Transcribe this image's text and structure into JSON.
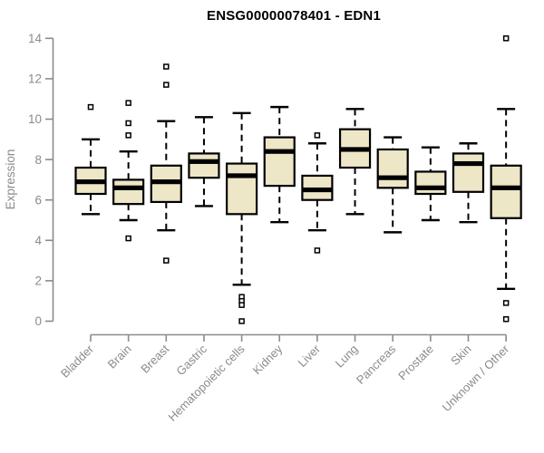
{
  "chart_data": {
    "type": "boxplot",
    "title": "ENSG00000078401 - EDN1",
    "ylabel": "Expression",
    "xlabel": "",
    "ylim": [
      0,
      14
    ],
    "yticks": [
      0,
      2,
      4,
      6,
      8,
      10,
      12,
      14
    ],
    "grid": false,
    "legend": null,
    "categories": [
      "Bladder",
      "Brain",
      "Breast",
      "Gastric",
      "Hematopoietic cells",
      "Kidney",
      "Liver",
      "Lung",
      "Pancreas",
      "Prostate",
      "Skin",
      "Unknown / Other"
    ],
    "boxes": [
      {
        "whisker_low": 5.3,
        "q1": 6.3,
        "median": 6.9,
        "q3": 7.6,
        "whisker_high": 9.0,
        "outliers": [
          10.6
        ]
      },
      {
        "whisker_low": 5.0,
        "q1": 5.8,
        "median": 6.6,
        "q3": 7.0,
        "whisker_high": 8.4,
        "outliers": [
          10.8,
          9.8,
          9.2,
          4.1
        ]
      },
      {
        "whisker_low": 4.5,
        "q1": 5.9,
        "median": 6.9,
        "q3": 7.7,
        "whisker_high": 9.9,
        "outliers": [
          12.6,
          11.7,
          3.0
        ]
      },
      {
        "whisker_low": 5.7,
        "q1": 7.1,
        "median": 7.9,
        "q3": 8.3,
        "whisker_high": 10.1,
        "outliers": []
      },
      {
        "whisker_low": 1.8,
        "q1": 5.3,
        "median": 7.2,
        "q3": 7.8,
        "whisker_high": 10.3,
        "outliers": [
          1.2,
          1.0,
          0.8,
          0.0
        ]
      },
      {
        "whisker_low": 4.9,
        "q1": 6.7,
        "median": 8.4,
        "q3": 9.1,
        "whisker_high": 10.6,
        "outliers": []
      },
      {
        "whisker_low": 4.5,
        "q1": 6.0,
        "median": 6.5,
        "q3": 7.2,
        "whisker_high": 8.8,
        "outliers": [
          9.2,
          3.5
        ]
      },
      {
        "whisker_low": 5.3,
        "q1": 7.6,
        "median": 8.5,
        "q3": 9.5,
        "whisker_high": 10.5,
        "outliers": []
      },
      {
        "whisker_low": 4.4,
        "q1": 6.6,
        "median": 7.1,
        "q3": 8.5,
        "whisker_high": 9.1,
        "outliers": []
      },
      {
        "whisker_low": 5.0,
        "q1": 6.3,
        "median": 6.6,
        "q3": 7.4,
        "whisker_high": 8.6,
        "outliers": []
      },
      {
        "whisker_low": 4.9,
        "q1": 6.4,
        "median": 7.8,
        "q3": 8.3,
        "whisker_high": 8.8,
        "outliers": []
      },
      {
        "whisker_low": 1.6,
        "q1": 5.1,
        "median": 6.6,
        "q3": 7.7,
        "whisker_high": 10.5,
        "outliers": [
          14.0,
          0.9,
          0.1
        ]
      }
    ],
    "colors": {
      "box_fill": "#EDE6C7",
      "box_border": "#000000",
      "median": "#000000",
      "axis": "#8B8B8B",
      "title_color": "#000000",
      "outlier_fill": "#FFFFFF"
    }
  }
}
